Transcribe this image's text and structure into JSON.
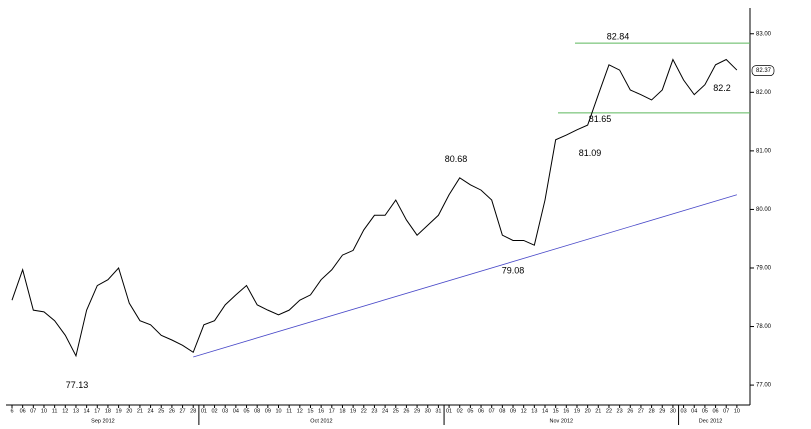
{
  "chart_data": {
    "type": "line",
    "categories": [
      "6",
      "06",
      "07",
      "10",
      "11",
      "12",
      "13",
      "14",
      "17",
      "18",
      "19",
      "20",
      "21",
      "24",
      "25",
      "26",
      "27",
      "28",
      "01",
      "02",
      "03",
      "04",
      "05",
      "08",
      "09",
      "10",
      "11",
      "12",
      "15",
      "16",
      "17",
      "18",
      "19",
      "22",
      "23",
      "24",
      "25",
      "26",
      "29",
      "30",
      "31",
      "01",
      "02",
      "05",
      "06",
      "07",
      "08",
      "09",
      "12",
      "13",
      "14",
      "15",
      "16",
      "19",
      "20",
      "21",
      "22",
      "23",
      "26",
      "27",
      "28",
      "29",
      "30",
      "03",
      "04",
      "05",
      "06",
      "07",
      "10"
    ],
    "months": [
      "Sep 2012",
      "Oct 2012",
      "Nov 2012",
      "Dec 2012"
    ],
    "series": [
      {
        "color": "#000000",
        "values": [
          78.45,
          78.97,
          78.28,
          78.25,
          78.1,
          77.85,
          77.5,
          78.28,
          78.7,
          78.8,
          79.0,
          78.4,
          78.1,
          78.03,
          77.85,
          77.77,
          77.68,
          77.56,
          78.03,
          78.1,
          78.37,
          78.54,
          78.7,
          78.37,
          78.28,
          78.2,
          78.28,
          78.45,
          78.54,
          78.8,
          78.97,
          79.22,
          79.3,
          79.65,
          79.9,
          79.9,
          80.16,
          79.82,
          79.56,
          79.73,
          79.9,
          80.25,
          80.54,
          80.42,
          80.33,
          80.16,
          79.56,
          79.47,
          79.47,
          79.39,
          80.16,
          81.19,
          81.27,
          81.36,
          81.44,
          81.96,
          82.47,
          82.38,
          82.04,
          81.96,
          81.87,
          82.04,
          82.56,
          82.21,
          81.96,
          82.13,
          82.47,
          82.56,
          82.38
        ]
      }
    ],
    "trendline": {
      "color": "#4848c8",
      "values": [
        77.48,
        80.25
      ]
    },
    "levels": {
      "color": "#5cb85c",
      "values": [
        82.84,
        81.65
      ]
    },
    "annotations": [
      77.13,
      80.68,
      79.08,
      81.09,
      82.2
    ],
    "last_price": {
      "value": 82.37,
      "label": "82.37"
    },
    "ylim": [
      76.66,
      83.44
    ],
    "yticks": [
      {
        "value": 83,
        "label": "83.00"
      },
      {
        "value": 82,
        "label": "82.00"
      },
      {
        "value": 81,
        "label": "81.00"
      },
      {
        "value": 80,
        "label": "80.00"
      },
      {
        "value": 79,
        "label": "79.00"
      },
      {
        "value": 78,
        "label": "78.00"
      },
      {
        "value": 77,
        "label": "77.00"
      }
    ]
  }
}
